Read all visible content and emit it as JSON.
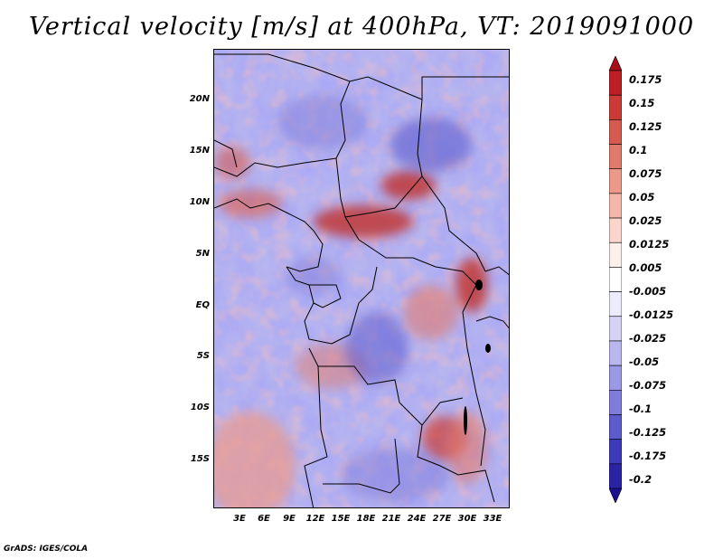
{
  "title": "Vertical velocity [m/s] at 400hPa, VT: 2019091000",
  "footer": "GrADS: IGES/COLA",
  "lat_labels": [
    "20N",
    "15N",
    "10N",
    "5N",
    "EQ",
    "5S",
    "10S",
    "15S"
  ],
  "lon_labels": [
    "3E",
    "6E",
    "9E",
    "12E",
    "15E",
    "18E",
    "21E",
    "24E",
    "27E",
    "30E",
    "33E"
  ],
  "colorbar": {
    "labels": [
      "0.175",
      "0.15",
      "0.125",
      "0.1",
      "0.075",
      "0.05",
      "0.025",
      "0.0125",
      "0.005",
      "-0.005",
      "-0.0125",
      "-0.025",
      "-0.05",
      "-0.075",
      "-0.1",
      "-0.125",
      "-0.175",
      "-0.2"
    ],
    "colors": [
      "#a50f15",
      "#bd1f25",
      "#cb3a35",
      "#d75a4f",
      "#e27a6c",
      "#ec998a",
      "#f3b7aa",
      "#f9d5cc",
      "#fdf0ec",
      "#ffffff",
      "#ecebfb",
      "#d4d3f5",
      "#b9b7ee",
      "#9b99e5",
      "#7f7cdb",
      "#5e5bcd",
      "#3d39bb",
      "#2a24a5",
      "#1a1090"
    ]
  },
  "chart_data": {
    "type": "heatmap",
    "title": "Vertical velocity [m/s] at 400hPa, VT: 2019091000",
    "variable": "Vertical velocity",
    "units": "m/s",
    "level": "400hPa",
    "valid_time": "2019091000",
    "lon_ticks": [
      "3E",
      "6E",
      "9E",
      "12E",
      "15E",
      "18E",
      "21E",
      "24E",
      "27E",
      "30E",
      "33E"
    ],
    "lat_ticks": [
      "20N",
      "15N",
      "10N",
      "5N",
      "EQ",
      "5S",
      "10S",
      "15S"
    ],
    "color_levels": [
      -0.2,
      -0.175,
      -0.125,
      -0.1,
      -0.075,
      -0.05,
      -0.025,
      -0.0125,
      -0.005,
      0.005,
      0.0125,
      0.025,
      0.05,
      0.075,
      0.1,
      0.125,
      0.15,
      0.175
    ]
  }
}
